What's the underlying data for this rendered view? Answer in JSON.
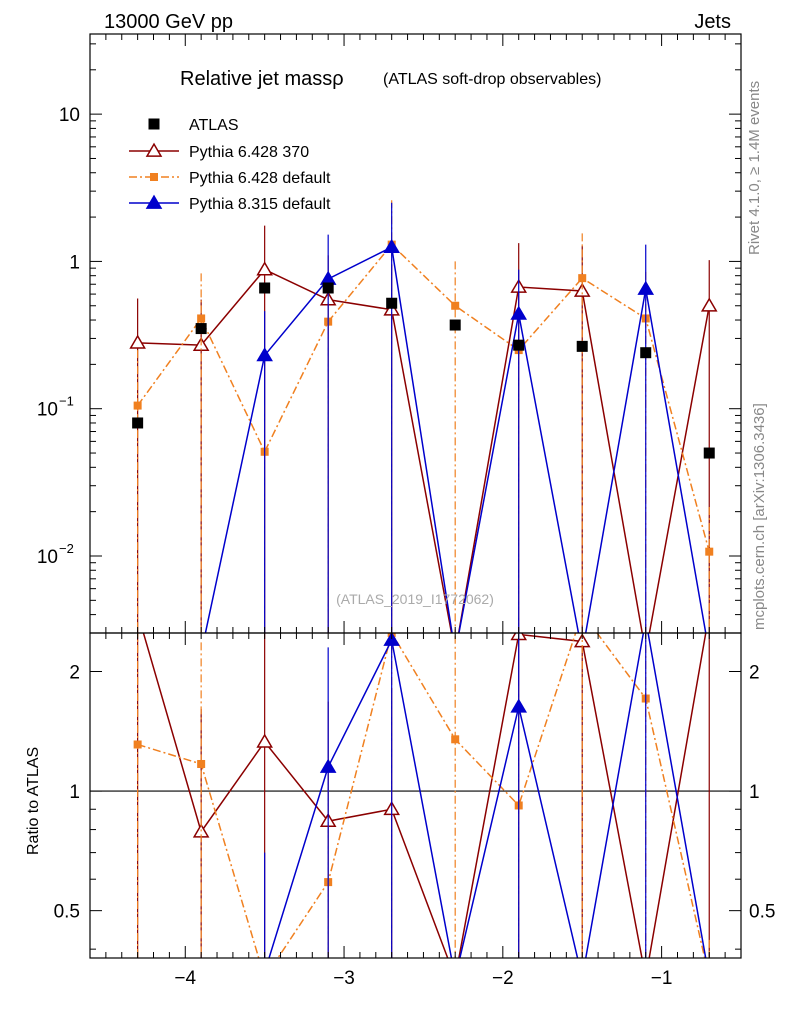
{
  "header": {
    "left": "13000 GeV pp",
    "right": "Jets"
  },
  "side_labels": {
    "rivet": "Rivet 4.1.0, ≥ 1.4M events",
    "mcplots": "mcplots.cern.ch [arXiv:1306.3436]"
  },
  "chart_data": {
    "type": "line",
    "title": "Relative jet massρ",
    "subtitle": "(ATLAS soft-drop observables)",
    "analysis_label": "(ATLAS_2019_I1772062)",
    "xlabel": "",
    "ylabel_main": "",
    "ylabel_ratio": "Ratio to ATLAS",
    "xlim": [
      -4.6,
      -0.5
    ],
    "main_ylim": [
      0.003,
      35
    ],
    "main_yscale": "log",
    "ratio_ylim": [
      0.38,
      2.5
    ],
    "ratio_yscale": "log",
    "x_ticks": [
      {
        "v": -4,
        "label": "−4"
      },
      {
        "v": -3,
        "label": "−3"
      },
      {
        "v": -2,
        "label": "−2"
      },
      {
        "v": -1,
        "label": "−1"
      }
    ],
    "main_y_ticks": [
      {
        "v": 10,
        "base": "10",
        "exp": ""
      },
      {
        "v": 1,
        "base": "1",
        "exp": ""
      },
      {
        "v": 0.1,
        "base": "10",
        "exp": "−1"
      },
      {
        "v": 0.01,
        "base": "10",
        "exp": "−2"
      }
    ],
    "ratio_y_ticks": [
      {
        "v": 2,
        "label": "2"
      },
      {
        "v": 1,
        "label": "1"
      },
      {
        "v": 0.5,
        "label": "0.5"
      }
    ],
    "x": [
      -4.3,
      -3.9,
      -3.5,
      -3.1,
      -2.7,
      -2.3,
      -1.9,
      -1.5,
      -1.1,
      -0.7
    ],
    "series": [
      {
        "name": "ATLAS",
        "color": "#000000",
        "marker": "square",
        "line": "none",
        "values": [
          0.08,
          0.35,
          0.66,
          0.66,
          0.52,
          0.37,
          0.27,
          0.265,
          0.24,
          0.05
        ],
        "ratio": [
          1,
          1,
          1,
          1,
          1,
          1,
          1,
          1,
          1,
          1
        ]
      },
      {
        "name": "Pythia 6.428 370",
        "color": "#8b0000",
        "marker": "open-triangle",
        "line": "solid",
        "values": [
          0.28,
          0.27,
          0.88,
          0.55,
          0.47,
          0.001,
          0.67,
          0.63,
          0.001,
          0.5
        ],
        "err_up": [
          0.56,
          0.55,
          1.75,
          1.1,
          0.95,
          null,
          1.33,
          1.27,
          null,
          1.02
        ],
        "err_low": [
          0.001,
          0.001,
          0.001,
          0.001,
          0.001,
          null,
          0.001,
          0.001,
          null,
          0.001
        ],
        "ratio": [
          3.5,
          0.79,
          1.33,
          0.84,
          0.9,
          0.001,
          2.48,
          2.38,
          0.001,
          10.0
        ]
      },
      {
        "name": "Pythia 6.428 default",
        "color": "#f08020",
        "marker": "square",
        "line": "dashdot",
        "values": [
          0.105,
          0.41,
          0.051,
          0.39,
          1.3,
          0.5,
          0.25,
          0.77,
          0.41,
          0.0107
        ],
        "err_up": [
          0.25,
          0.83,
          0.105,
          0.8,
          2.6,
          1.0,
          0.5,
          1.55,
          0.85,
          0.0215
        ],
        "err_low": [
          0.001,
          0.001,
          0.001,
          0.001,
          0.001,
          0.001,
          0.001,
          0.001,
          0.001,
          0.001
        ],
        "ratio": [
          1.31,
          1.17,
          0.077,
          0.59,
          2.5,
          1.35,
          0.92,
          2.9,
          1.71,
          0.21
        ]
      },
      {
        "name": "Pythia 8.315 default",
        "color": "#0000cc",
        "marker": "triangle",
        "line": "solid",
        "values": [
          0.001,
          0.001,
          0.23,
          0.76,
          1.25,
          0.001,
          0.44,
          0.001,
          0.65,
          0.001
        ],
        "err_up": [
          null,
          null,
          0.46,
          1.52,
          2.5,
          null,
          0.88,
          null,
          1.3,
          null
        ],
        "err_low": [
          null,
          null,
          0.001,
          0.001,
          0.001,
          null,
          0.001,
          null,
          0.001,
          null
        ],
        "ratio": [
          0.001,
          0.001,
          0.35,
          1.15,
          2.4,
          0.001,
          1.63,
          0.001,
          2.7,
          0.001
        ]
      }
    ]
  }
}
